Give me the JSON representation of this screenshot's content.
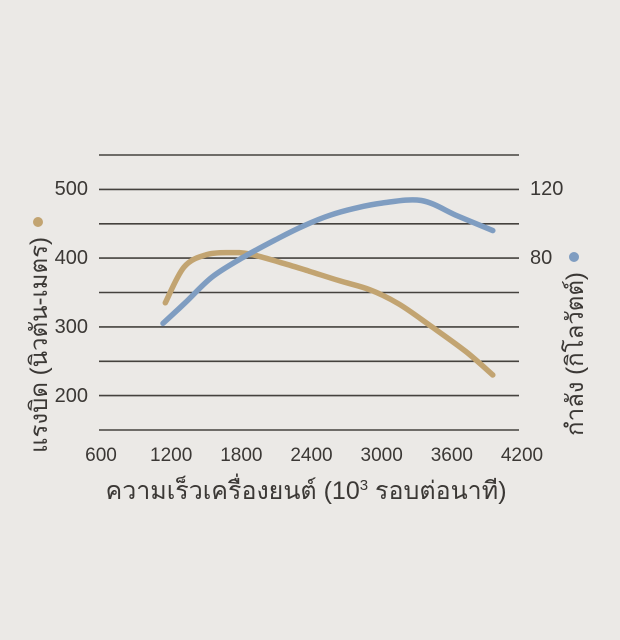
{
  "colors": {
    "background": "#ebe9e6",
    "text": "#3b3835",
    "grid": "#45423e",
    "torque": "#c2a471",
    "power": "#7f9dc1"
  },
  "chart_data": {
    "type": "line",
    "title": "",
    "xlabel": "ความเร็วเครื่องยนต์ (10³ รอบต่อนาที)",
    "xlabel_parts": {
      "prefix": "ความเร็วเครื่องยนต์ (10",
      "sup": "3",
      "suffix": " รอบต่อนาที)"
    },
    "x_ticks": [
      600,
      1200,
      1800,
      2400,
      3000,
      3600,
      4200
    ],
    "x_range": [
      600,
      4200
    ],
    "grid": true,
    "gridline_values": [
      550,
      500,
      450,
      400,
      350,
      300,
      250,
      200,
      150
    ],
    "left_axis": {
      "label": "แรงบิด (นิวตัน-เมตร)",
      "ticks": [
        500,
        400,
        300,
        200
      ],
      "range": [
        150,
        550
      ],
      "marker_color": "#c2a471"
    },
    "right_axis": {
      "label": "กำลัง (กิโลวัตต์)",
      "ticks": [
        120,
        80
      ],
      "range": [
        -20,
        140
      ],
      "marker_color": "#7f9dc1"
    },
    "series": [
      {
        "name": "torque",
        "axis": "left",
        "color": "#c2a471",
        "points": [
          [
            1150,
            335
          ],
          [
            1310,
            387
          ],
          [
            1500,
            405
          ],
          [
            1700,
            408
          ],
          [
            1870,
            406
          ],
          [
            2130,
            394
          ],
          [
            2380,
            381
          ],
          [
            2640,
            367
          ],
          [
            2900,
            354
          ],
          [
            3150,
            333
          ],
          [
            3430,
            300
          ],
          [
            3720,
            264
          ],
          [
            3950,
            230
          ]
        ]
      },
      {
        "name": "power",
        "axis": "right",
        "color": "#7f9dc1",
        "points": [
          [
            1130,
            42
          ],
          [
            1320,
            54
          ],
          [
            1550,
            69
          ],
          [
            1830,
            81
          ],
          [
            2130,
            92
          ],
          [
            2340,
            99
          ],
          [
            2560,
            105
          ],
          [
            2770,
            109
          ],
          [
            3000,
            112
          ],
          [
            3340,
            113.5
          ],
          [
            3650,
            104.5
          ],
          [
            3950,
            96
          ]
        ]
      }
    ]
  }
}
